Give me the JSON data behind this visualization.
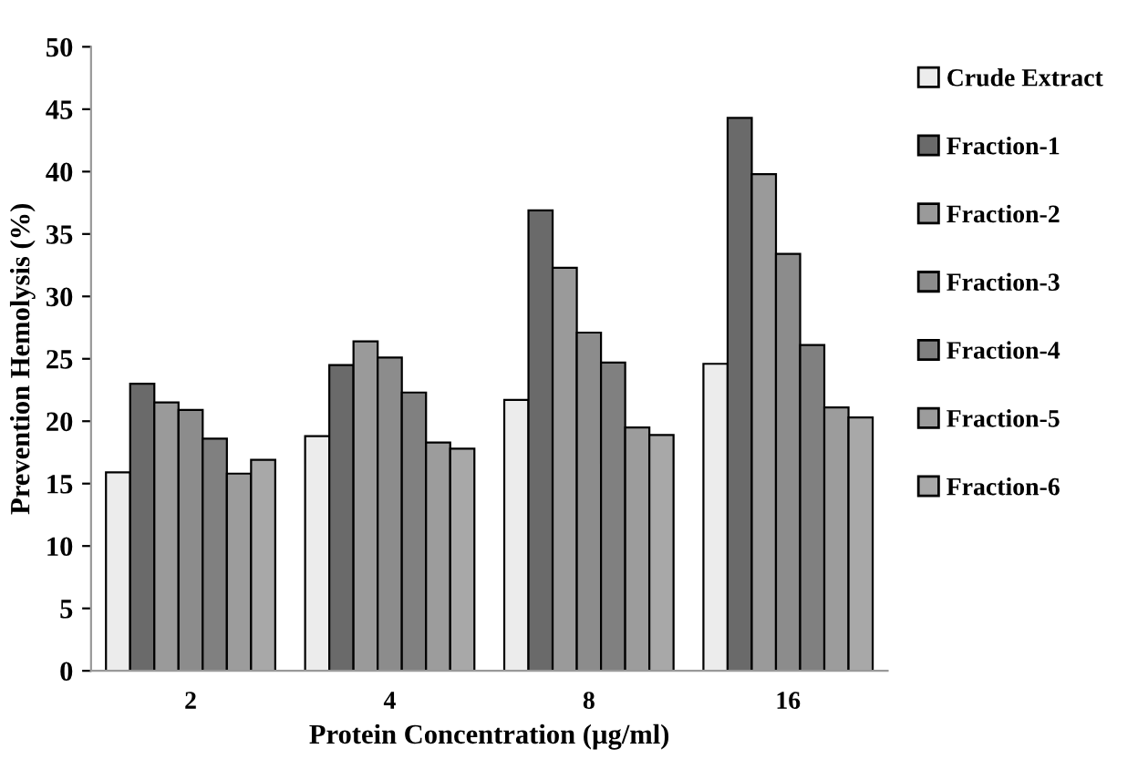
{
  "chart_data": {
    "type": "bar",
    "xlabel": "Protein Concentration (µg/ml)",
    "ylabel": "Prevention Hemolysis (%)",
    "categories": [
      "2",
      "4",
      "8",
      "16"
    ],
    "series": [
      {
        "name": "Crude Extract",
        "color": "#ececec",
        "values": [
          15.9,
          18.8,
          21.7,
          24.6
        ]
      },
      {
        "name": "Fraction-1",
        "color": "#6a6a6a",
        "values": [
          23.0,
          24.5,
          36.9,
          44.3
        ]
      },
      {
        "name": "Fraction-2",
        "color": "#9a9a9a",
        "values": [
          21.5,
          26.4,
          32.3,
          39.8
        ]
      },
      {
        "name": "Fraction-3",
        "color": "#8c8c8c",
        "values": [
          20.9,
          25.1,
          27.1,
          33.4
        ]
      },
      {
        "name": "Fraction-4",
        "color": "#808080",
        "values": [
          18.6,
          22.3,
          24.7,
          26.1
        ]
      },
      {
        "name": "Fraction-5",
        "color": "#9c9c9c",
        "values": [
          15.8,
          18.3,
          19.5,
          21.1
        ]
      },
      {
        "name": "Fraction-6",
        "color": "#a8a8a8",
        "values": [
          16.9,
          17.8,
          18.9,
          20.3
        ]
      }
    ],
    "ylim": [
      0,
      50
    ],
    "yticks": [
      0,
      5,
      10,
      15,
      20,
      25,
      30,
      35,
      40,
      45,
      50
    ],
    "grid": false,
    "legend": "right"
  }
}
